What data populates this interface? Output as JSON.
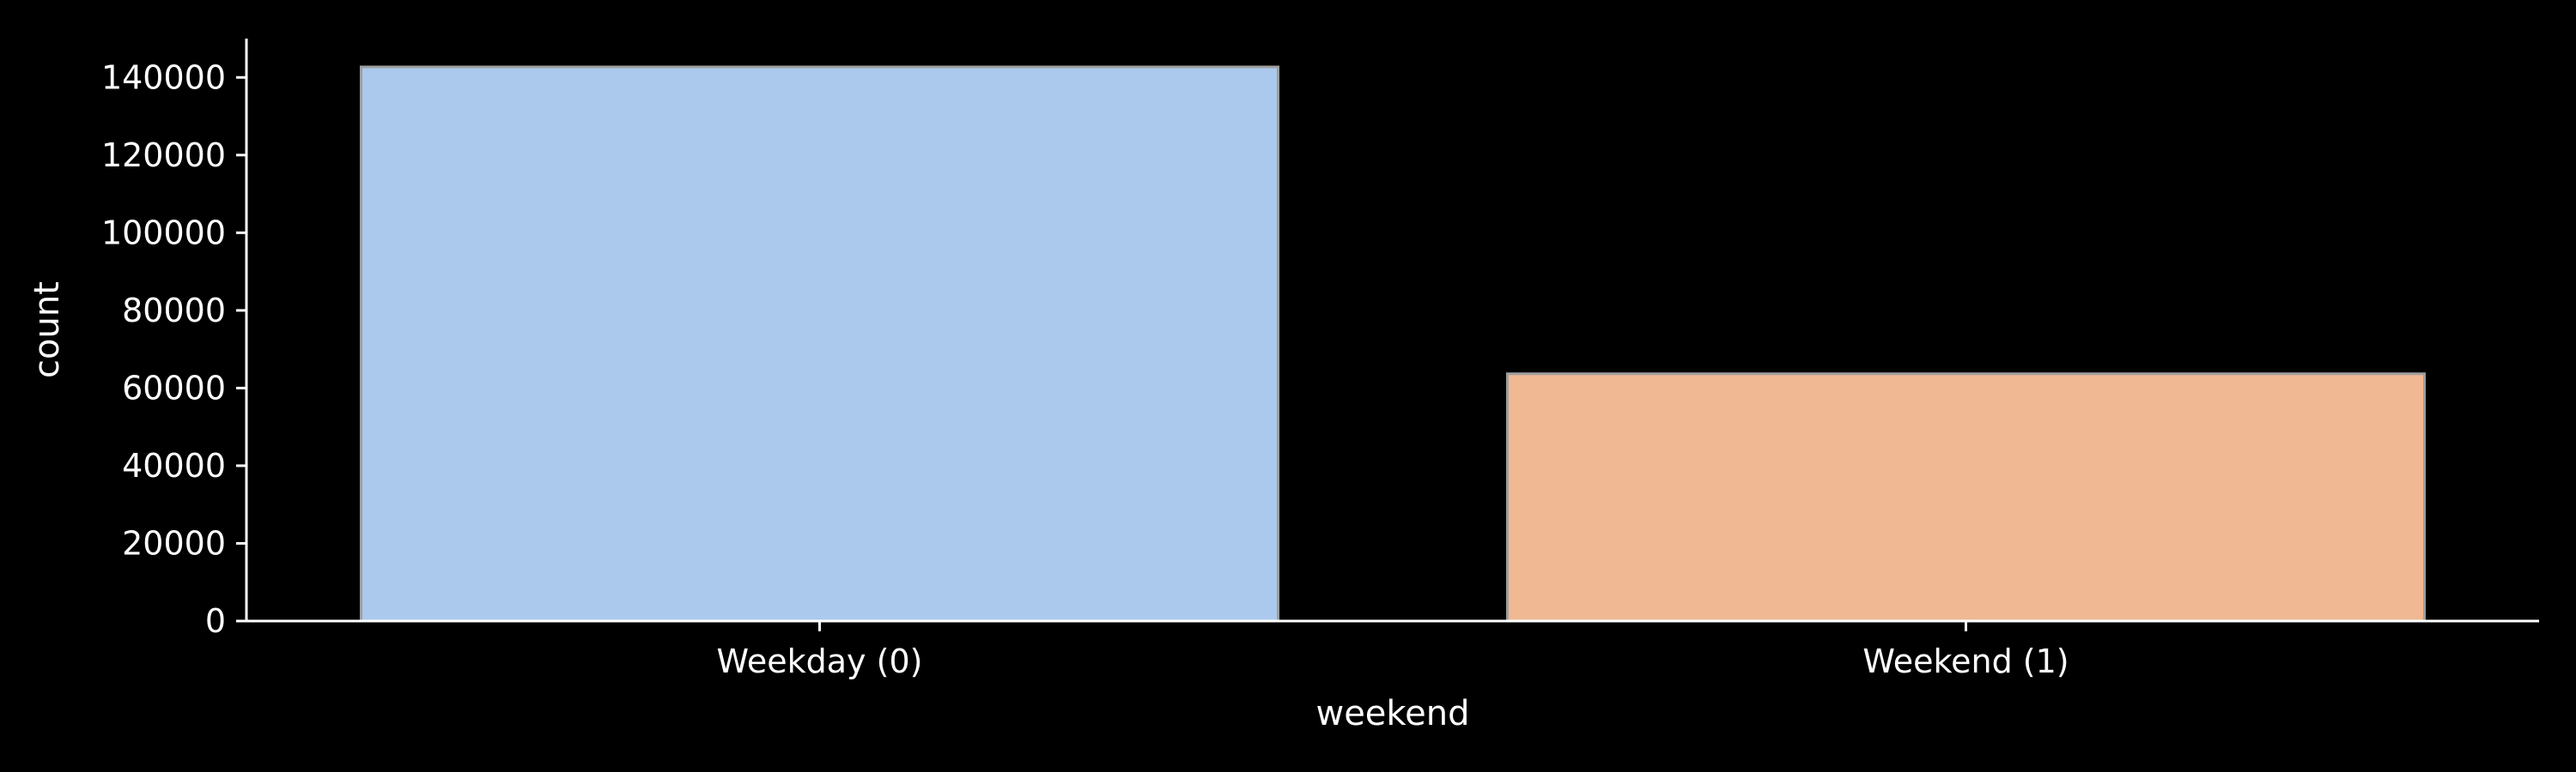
{
  "chart_data": {
    "type": "bar",
    "categories": [
      "Weekday (0)",
      "Weekend (1)"
    ],
    "values": [
      142700,
      63700
    ],
    "xlabel": "weekend",
    "ylabel": "count",
    "ylim": [
      0,
      150000
    ],
    "yticks": [
      0,
      20000,
      40000,
      60000,
      80000,
      100000,
      120000,
      140000
    ],
    "ytick_labels": [
      "0",
      "20000",
      "40000",
      "60000",
      "80000",
      "100000",
      "120000",
      "140000"
    ],
    "bar_colors": [
      "#abc9ed",
      "#f0b893"
    ],
    "bar_edge_color": "#9e9e9e",
    "background": "#000000",
    "axis_color": "#ffffff",
    "grid": false,
    "legend": "none"
  }
}
